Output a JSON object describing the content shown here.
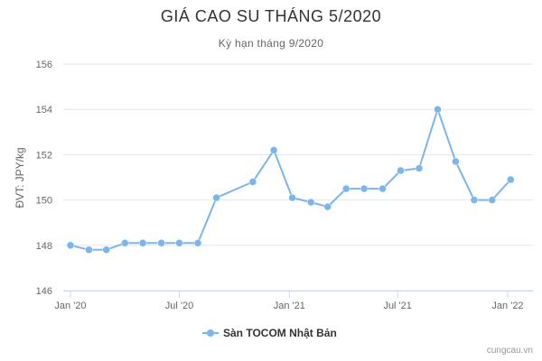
{
  "chart_data": {
    "type": "line",
    "title": "GIÁ CAO SU THÁNG 5/2020",
    "subtitle": "Kỳ hạn tháng 9/2020",
    "ylabel": "ĐVT: JPY/kg",
    "xlabel": "",
    "ylim": [
      146,
      156
    ],
    "yticks": [
      146,
      148,
      150,
      152,
      154,
      156
    ],
    "xticks": [
      {
        "label": "Jan '20",
        "date": "2020-01-01"
      },
      {
        "label": "Jul '20",
        "date": "2020-07-01"
      },
      {
        "label": "Jan '21",
        "date": "2021-01-01"
      },
      {
        "label": "Jul '21",
        "date": "2021-07-01"
      },
      {
        "label": "Jan '22",
        "date": "2022-01-01"
      }
    ],
    "xrange": [
      "2020-01-01",
      "2022-02-15"
    ],
    "grid": true,
    "legend_position": "bottom-center",
    "color": "#7cb5ec",
    "series": [
      {
        "name": "Sàn TOCOM Nhật Bản",
        "points": [
          {
            "date": "2020-01-01",
            "y": 148.0
          },
          {
            "date": "2020-02-01",
            "y": 147.8
          },
          {
            "date": "2020-03-01",
            "y": 147.8
          },
          {
            "date": "2020-04-01",
            "y": 148.1
          },
          {
            "date": "2020-05-01",
            "y": 148.1
          },
          {
            "date": "2020-06-01",
            "y": 148.1
          },
          {
            "date": "2020-07-01",
            "y": 148.1
          },
          {
            "date": "2020-08-01",
            "y": 148.1
          },
          {
            "date": "2020-09-01",
            "y": 150.1
          },
          {
            "date": "2020-11-01",
            "y": 150.8
          },
          {
            "date": "2020-12-06",
            "y": 152.2
          },
          {
            "date": "2021-01-06",
            "y": 150.1
          },
          {
            "date": "2021-02-06",
            "y": 149.9
          },
          {
            "date": "2021-03-06",
            "y": 149.7
          },
          {
            "date": "2021-04-06",
            "y": 150.5
          },
          {
            "date": "2021-05-06",
            "y": 150.5
          },
          {
            "date": "2021-06-06",
            "y": 150.5
          },
          {
            "date": "2021-07-06",
            "y": 151.3
          },
          {
            "date": "2021-08-06",
            "y": 151.4
          },
          {
            "date": "2021-09-06",
            "y": 154.0
          },
          {
            "date": "2021-10-06",
            "y": 151.7
          },
          {
            "date": "2021-11-06",
            "y": 150.0
          },
          {
            "date": "2021-12-06",
            "y": 150.0
          },
          {
            "date": "2022-01-06",
            "y": 150.9
          }
        ]
      }
    ]
  },
  "credit": "cungcau.vn"
}
